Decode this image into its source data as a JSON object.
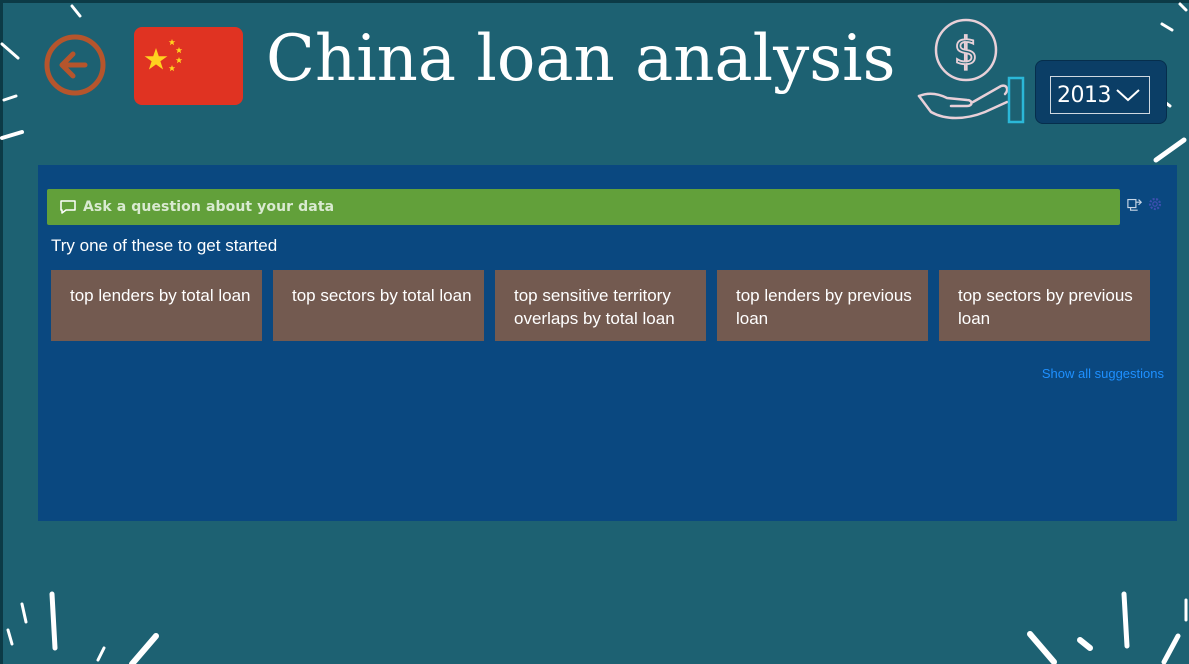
{
  "header": {
    "title": "China loan analysis",
    "back_icon": "arrow-left-circle-icon",
    "flag_icon": "china-flag-icon",
    "money_icon": "hand-holding-dollar-icon"
  },
  "year_filter": {
    "selected": "2013"
  },
  "qa": {
    "placeholder": "Ask a question about your data",
    "try_text": "Try one of these to get started",
    "suggestions": [
      "top lenders by total loan",
      "top sectors by total loan",
      "top sensitive territory overlaps by total loan",
      "top lenders by previous loan",
      "top sectors by previous loan"
    ],
    "show_all": "Show all suggestions"
  },
  "colors": {
    "background": "#1d6172",
    "panel": "#0a4880",
    "qa_bar": "#62a03a",
    "suggestion": "#735a50",
    "flag": "#e03322",
    "back_arrow": "#b5552c",
    "link": "#1e90ff"
  }
}
